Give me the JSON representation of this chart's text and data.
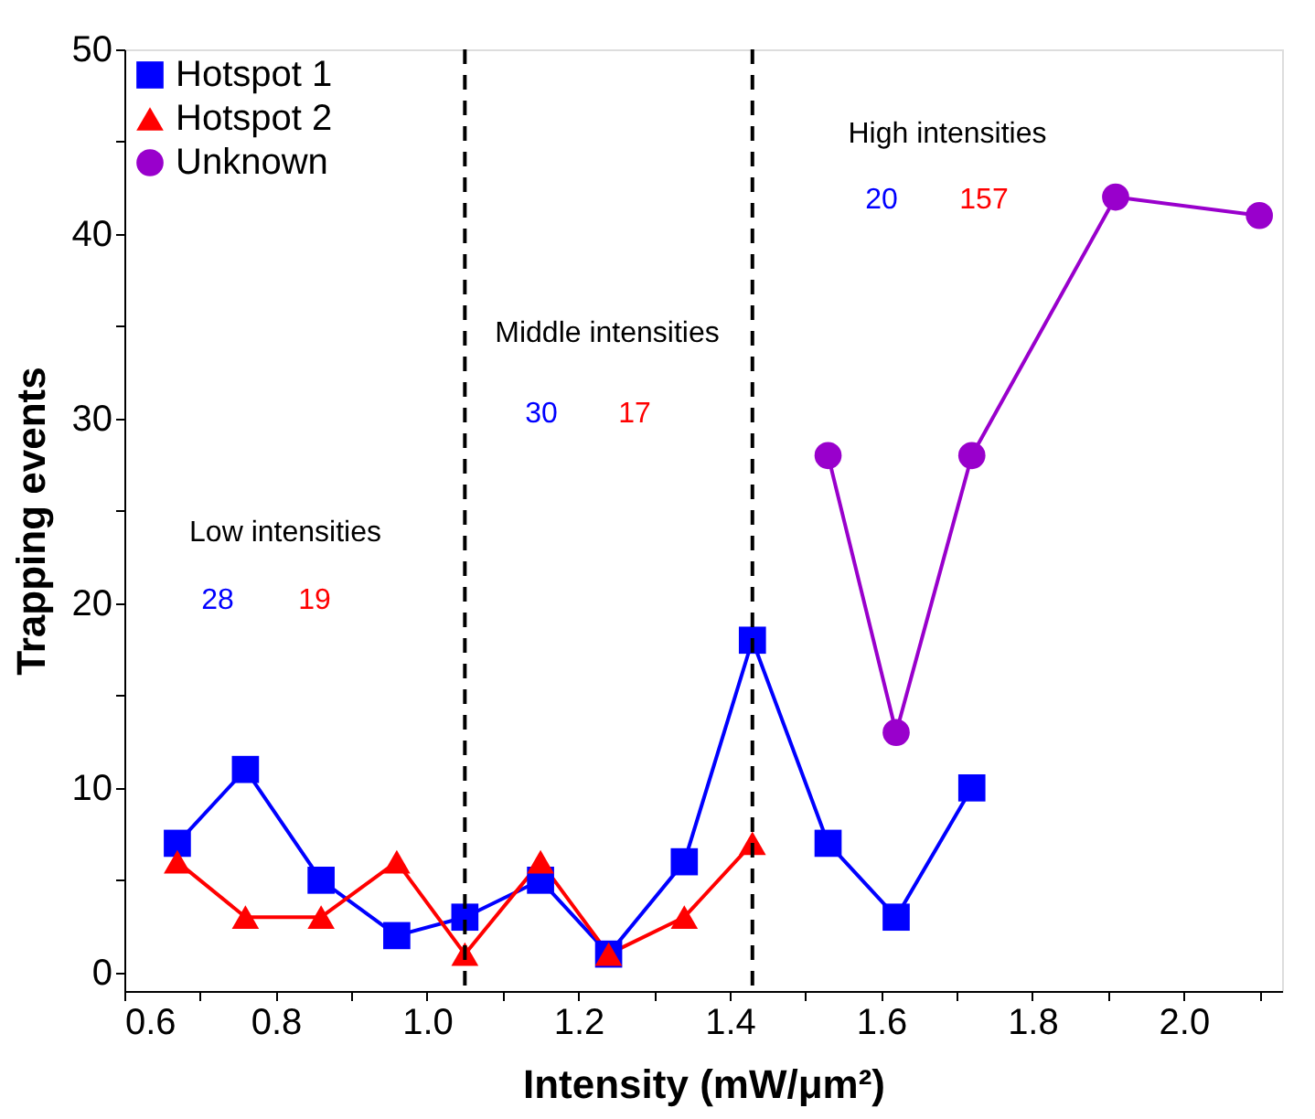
{
  "chart_data": {
    "type": "line",
    "xlabel": "Intensity (mW/μm²)",
    "ylabel": "Trapping events",
    "xlim": [
      0.6,
      2.13
    ],
    "ylim": [
      -1,
      50
    ],
    "xticks": [
      {
        "value": 0.6,
        "label": "0.6"
      },
      {
        "value": 0.7,
        "label": null
      },
      {
        "value": 0.8,
        "label": "0.8"
      },
      {
        "value": 0.9,
        "label": null
      },
      {
        "value": 1.0,
        "label": "1.0"
      },
      {
        "value": 1.1,
        "label": null
      },
      {
        "value": 1.2,
        "label": "1.2"
      },
      {
        "value": 1.3,
        "label": null
      },
      {
        "value": 1.4,
        "label": "1.4"
      },
      {
        "value": 1.5,
        "label": null
      },
      {
        "value": 1.6,
        "label": "1.6"
      },
      {
        "value": 1.7,
        "label": null
      },
      {
        "value": 1.8,
        "label": "1.8"
      },
      {
        "value": 1.9,
        "label": null
      },
      {
        "value": 2.0,
        "label": "2.0"
      },
      {
        "value": 2.1,
        "label": null
      }
    ],
    "yticks": [
      0,
      {
        "value": 5,
        "label": null
      },
      10,
      {
        "value": 15,
        "label": null
      },
      20,
      {
        "value": 25,
        "label": null
      },
      30,
      {
        "value": 35,
        "label": null
      },
      40,
      {
        "value": 45,
        "label": null
      },
      50
    ],
    "series": [
      {
        "name": "Hotspot 1",
        "color": "#0000ff",
        "marker": "square",
        "x": [
          0.67,
          0.76,
          0.86,
          0.96,
          1.05,
          1.15,
          1.24,
          1.34,
          1.43,
          1.53,
          1.62,
          1.72
        ],
        "values": [
          7,
          11,
          5,
          2,
          3,
          5,
          1,
          6,
          18,
          7,
          3,
          10
        ]
      },
      {
        "name": "Hotspot 2",
        "color": "#ff0000",
        "marker": "triangle",
        "x": [
          0.67,
          0.76,
          0.86,
          0.96,
          1.05,
          1.15,
          1.24,
          1.34,
          1.43
        ],
        "values": [
          6,
          3,
          3,
          6,
          1,
          6,
          1,
          3,
          7
        ]
      },
      {
        "name": "Unknown",
        "color": "#9900cc",
        "marker": "circle",
        "x": [
          1.53,
          1.62,
          1.72,
          1.91,
          2.1
        ],
        "values": [
          28,
          13,
          28,
          42,
          41
        ]
      }
    ],
    "ref_lines": [
      {
        "axis": "x",
        "value": 1.05,
        "color": "#000000",
        "line_style": "dashed"
      },
      {
        "axis": "x",
        "value": 1.43,
        "color": "#000000",
        "line_style": "dashed"
      }
    ],
    "annotations": [
      "Low intensities",
      "28",
      "19",
      "Middle intensities",
      "30",
      "17",
      "High intensities",
      "20",
      "157"
    ],
    "legend": "top left",
    "grid": false,
    "line_style": "solid"
  }
}
